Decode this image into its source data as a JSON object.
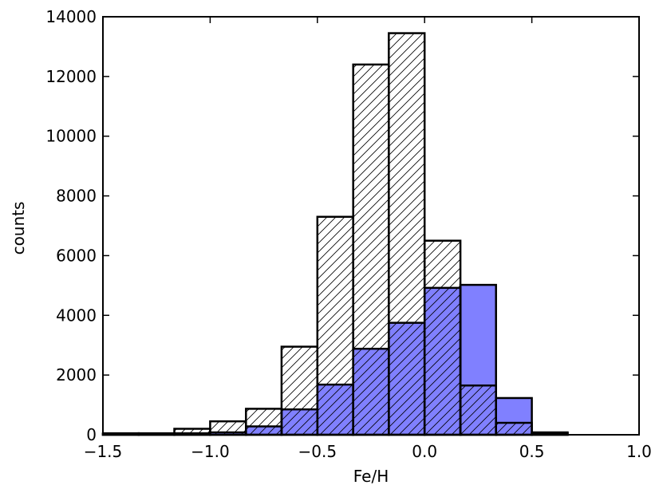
{
  "chart_data": {
    "type": "bar",
    "subtype": "overlaid-histogram",
    "xlabel": "Fe/H",
    "ylabel": "counts",
    "xlim": [
      -1.5,
      1.0
    ],
    "ylim": [
      0,
      14000
    ],
    "xticks": [
      -1.5,
      -1.0,
      -0.5,
      0.0,
      0.5,
      1.0
    ],
    "xtick_labels": [
      "−1.5",
      "−1.0",
      "−0.5",
      "0.0",
      "0.5",
      "1.0"
    ],
    "yticks": [
      0,
      2000,
      4000,
      6000,
      8000,
      10000,
      12000,
      14000
    ],
    "ytick_labels": [
      "0",
      "2000",
      "4000",
      "6000",
      "8000",
      "10000",
      "12000",
      "14000"
    ],
    "bin_edges": [
      -1.5,
      -1.333,
      -1.167,
      -1.0,
      -0.833,
      -0.667,
      -0.5,
      -0.333,
      -0.167,
      0.0,
      0.167,
      0.333,
      0.5,
      0.667,
      0.833,
      1.0
    ],
    "series": [
      {
        "style": "hatched",
        "values": [
          50,
          50,
          200,
          450,
          870,
          2950,
          7300,
          12400,
          13450,
          6500,
          1650,
          400,
          80,
          0,
          0
        ]
      },
      {
        "style": "filled",
        "color": "#8080ff",
        "values": [
          20,
          20,
          50,
          80,
          280,
          850,
          1680,
          2880,
          3750,
          4920,
          5020,
          1230,
          50,
          0,
          0
        ]
      }
    ],
    "grid": false,
    "legend": "none"
  }
}
